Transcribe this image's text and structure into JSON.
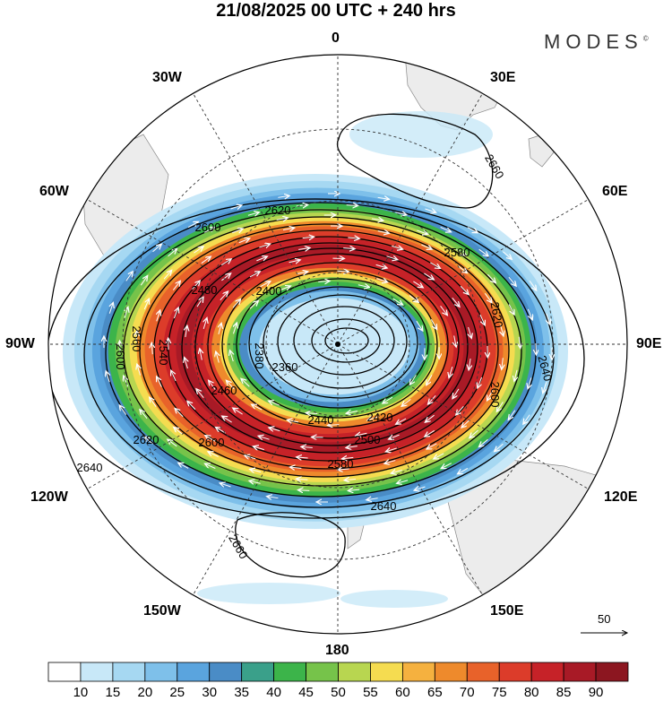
{
  "header": {
    "title": "21/08/2025  00 UTC  + 240 hrs",
    "brand": "MODES",
    "brand_mark": "©"
  },
  "map": {
    "projection": "south-polar-stereographic",
    "longitude_labels": {
      "top": "0",
      "bottom": "180",
      "left": "90W",
      "right": "90E",
      "upper_left_1": "30W",
      "upper_left_2": "60W",
      "upper_right_1": "30E",
      "upper_right_2": "60E",
      "lower_left_1": "120W",
      "lower_left_2": "150W",
      "lower_right_1": "120E",
      "lower_right_2": "150E"
    },
    "contour_labels": {
      "c2660_a": "2660",
      "c2660_b": "2660",
      "c2640_a": "2640",
      "c2640_b": "2640",
      "c2640_c": "2640",
      "c2620_a": "2620",
      "c2620_b": "2620",
      "c2620_c": "2620",
      "c2600_a": "2600",
      "c2600_b": "2600",
      "c2600_c": "2600",
      "c2600_d": "2600",
      "c2580_a": "2580",
      "c2580_b": "2580",
      "c2560": "2560",
      "c2540": "2540",
      "c2500": "2500",
      "c2480": "2480",
      "c2460": "2460",
      "c2440": "2440",
      "c2420": "2420",
      "c2400": "2400",
      "c2380": "2380",
      "c2360": "2360"
    },
    "wind_speed_colors": [
      "#ffffff",
      "#c8e8f8",
      "#a6d8f2",
      "#7ec0ea",
      "#5aa4de",
      "#4a8cc6",
      "#3aa08a",
      "#3cb44a",
      "#76c34a",
      "#b8d650",
      "#f5dc50",
      "#f5b13f",
      "#ee8a2c",
      "#e8622a",
      "#dc3c2a",
      "#c62228",
      "#a81a26",
      "#8c1620"
    ],
    "land_color": "#ececec",
    "reference_vector_label": "50"
  },
  "colorbar": {
    "ticks": [
      "10",
      "15",
      "20",
      "25",
      "30",
      "35",
      "40",
      "45",
      "50",
      "55",
      "60",
      "65",
      "70",
      "75",
      "80",
      "85",
      "90"
    ]
  }
}
